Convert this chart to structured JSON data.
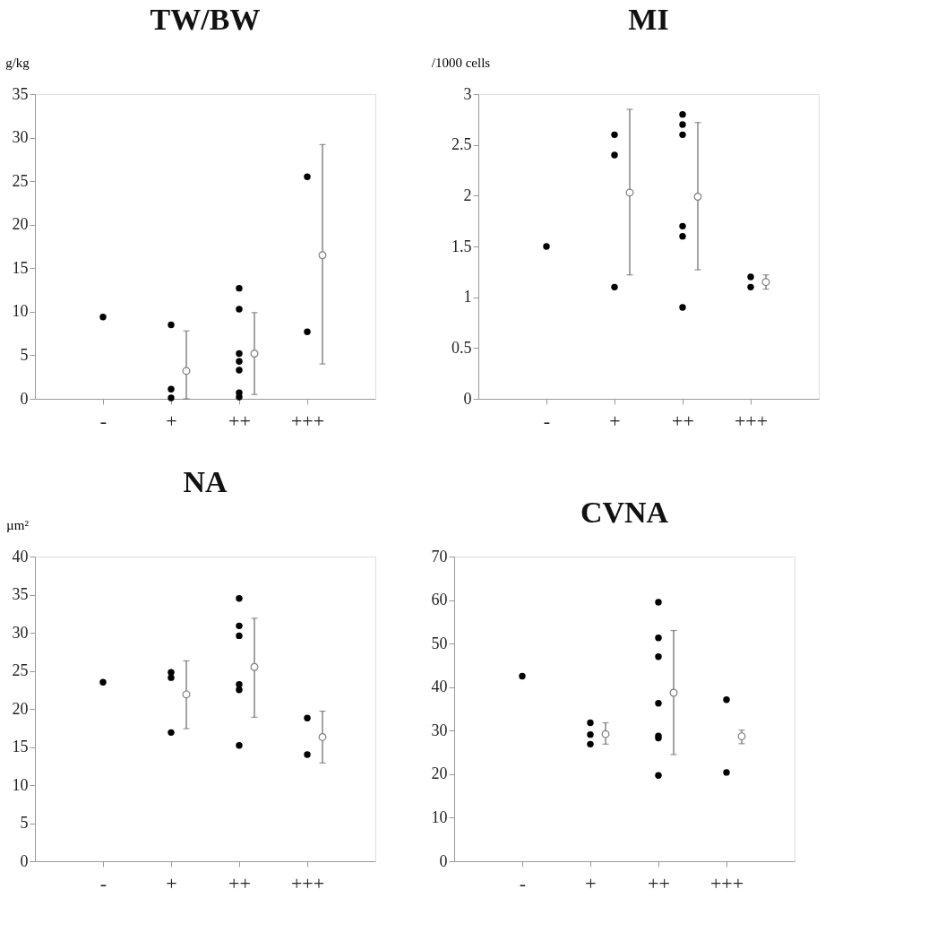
{
  "chart_data": [
    {
      "type": "scatter",
      "title": "TW/BW",
      "ylabel": "g/kg",
      "categories": [
        "-",
        "+",
        "++",
        "+++"
      ],
      "ylim": [
        0,
        35
      ],
      "yticks": [
        0,
        5,
        10,
        15,
        20,
        25,
        30,
        35
      ],
      "marker": "circle",
      "series": [
        {
          "color": "#000000",
          "x": [
            "-",
            "+",
            "+",
            "+",
            "++",
            "++",
            "++",
            "++",
            "++",
            "++",
            "++",
            "+++",
            "+++"
          ],
          "values": [
            9.4,
            8.5,
            1.1,
            0.1,
            12.7,
            10.3,
            5.2,
            4.3,
            3.3,
            0.7,
            0.2,
            25.5,
            7.7
          ]
        },
        {
          "color": "#808080",
          "x": [
            "+",
            "++",
            "+++"
          ],
          "values": [
            3.2,
            5.2,
            16.5
          ],
          "errors": [
            [
              0,
              7.8
            ],
            [
              0.5,
              9.9
            ],
            [
              4.0,
              29.2
            ]
          ]
        }
      ]
    },
    {
      "type": "scatter",
      "title": "MI",
      "ylabel": "/1000 cells",
      "categories": [
        "-",
        "+",
        "++",
        "+++"
      ],
      "ylim": [
        0,
        3
      ],
      "yticks": [
        0,
        0.5,
        1,
        1.5,
        2,
        2.5,
        3
      ],
      "marker": "circle",
      "series": [
        {
          "color": "#000000",
          "x": [
            "-",
            "+",
            "+",
            "+",
            "++",
            "++",
            "++",
            "++",
            "++",
            "++",
            "+++",
            "+++"
          ],
          "values": [
            1.5,
            2.6,
            2.4,
            1.1,
            2.8,
            2.7,
            2.6,
            1.7,
            1.6,
            0.9,
            1.2,
            1.1
          ]
        },
        {
          "color": "#808080",
          "x": [
            "+",
            "++",
            "+++"
          ],
          "values": [
            2.03,
            1.99,
            1.15
          ],
          "errors": [
            [
              1.22,
              2.85
            ],
            [
              1.27,
              2.72
            ],
            [
              1.08,
              1.22
            ]
          ]
        }
      ]
    },
    {
      "type": "scatter",
      "title": "NA",
      "ylabel": "µm²",
      "categories": [
        "-",
        "+",
        "++",
        "+++"
      ],
      "ylim": [
        0,
        40
      ],
      "yticks": [
        0,
        5,
        10,
        15,
        20,
        25,
        30,
        35,
        40
      ],
      "marker": "circle",
      "series": [
        {
          "color": "#000000",
          "x": [
            "-",
            "+",
            "+",
            "+",
            "++",
            "++",
            "++",
            "++",
            "++",
            "++",
            "+++",
            "+++"
          ],
          "values": [
            23.5,
            24.8,
            24.1,
            16.9,
            34.5,
            30.9,
            29.6,
            23.2,
            22.5,
            15.2,
            18.8,
            14.0
          ]
        },
        {
          "color": "#808080",
          "x": [
            "+",
            "++",
            "+++"
          ],
          "values": [
            21.9,
            25.5,
            16.3
          ],
          "errors": [
            [
              17.4,
              26.3
            ],
            [
              18.9,
              31.9
            ],
            [
              12.9,
              19.7
            ]
          ]
        }
      ]
    },
    {
      "type": "scatter",
      "title": "CVNA",
      "categories": [
        "-",
        "+",
        "++",
        "+++"
      ],
      "ylim": [
        0,
        70
      ],
      "yticks": [
        0,
        10,
        20,
        30,
        40,
        50,
        60,
        70
      ],
      "marker": "circle",
      "series": [
        {
          "color": "#000000",
          "x": [
            "-",
            "+",
            "+",
            "+",
            "++",
            "++",
            "++",
            "++",
            "++",
            "++",
            "++",
            "+++",
            "+++"
          ],
          "values": [
            42.5,
            31.8,
            29.1,
            26.9,
            59.5,
            51.3,
            47.0,
            36.3,
            28.8,
            28.3,
            19.7,
            37.1,
            20.4
          ]
        },
        {
          "color": "#808080",
          "x": [
            "+",
            "++",
            "+++"
          ],
          "values": [
            29.2,
            38.7,
            28.7
          ],
          "errors": [
            [
              26.9,
              31.8
            ],
            [
              24.5,
              53.0
            ],
            [
              27.0,
              30.1
            ]
          ]
        }
      ]
    }
  ]
}
